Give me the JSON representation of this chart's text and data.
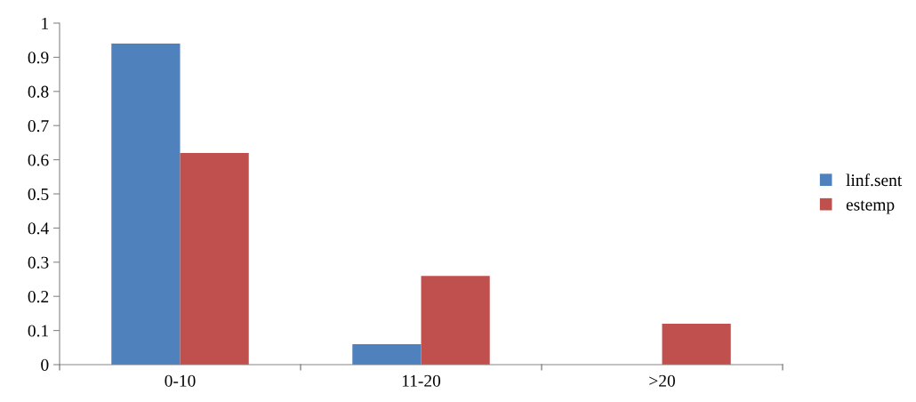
{
  "chart_data": {
    "type": "bar",
    "categories": [
      "0-10",
      "11-20",
      ">20"
    ],
    "series": [
      {
        "name": "linf.sent",
        "color": "#4f81bd",
        "values": [
          0.94,
          0.06,
          0
        ]
      },
      {
        "name": "estemp",
        "color": "#c0504d",
        "values": [
          0.62,
          0.26,
          0.12
        ]
      }
    ],
    "ylim": [
      0,
      1
    ],
    "yticks": [
      0,
      0.1,
      0.2,
      0.3,
      0.4,
      0.5,
      0.6,
      0.7,
      0.8,
      0.9,
      1
    ],
    "grid": false,
    "legend": "right"
  }
}
